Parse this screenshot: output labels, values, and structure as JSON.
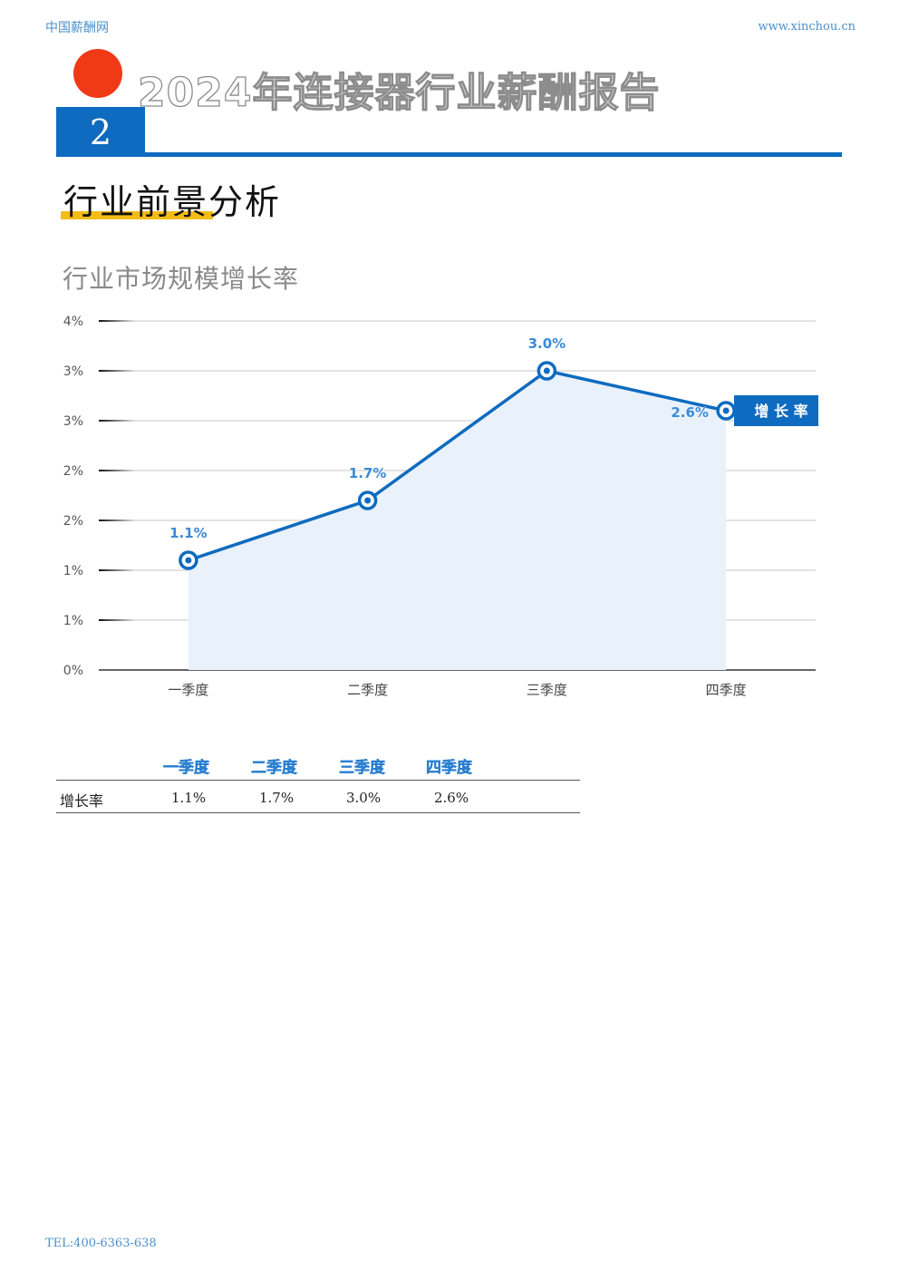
{
  "header": {
    "site_name": "中国薪酬网",
    "site_url": "www.xinchou.cn"
  },
  "report_title": "2024年连接器行业薪酬报告",
  "section_number": "2",
  "section_title": "行业前景分析",
  "chart_title": "行业市场规模增长率",
  "colors": {
    "brand_blue": "#0e6bbf",
    "accent_red": "#f03a17",
    "accent_yellow": "#f4bc18",
    "area_fill": "#e9f1fa"
  },
  "chart_data": {
    "type": "line",
    "title": "行业市场规模增长率",
    "categories": [
      "一季度",
      "二季度",
      "三季度",
      "四季度"
    ],
    "series": [
      {
        "name": "增长率",
        "values": [
          1.1,
          1.7,
          3.0,
          2.6
        ],
        "labels": [
          "1.1%",
          "1.7%",
          "3.0%",
          "2.6%"
        ]
      }
    ],
    "y_ticks": [
      0,
      0.5,
      1.0,
      1.5,
      2.0,
      2.5,
      3.0,
      3.5
    ],
    "y_tick_labels": [
      "0%",
      "1%",
      "1%",
      "2%",
      "2%",
      "3%",
      "3%",
      "4%"
    ],
    "ylim": [
      0,
      3.5
    ],
    "legend_label": "增 长 率",
    "legend_position": "right"
  },
  "table": {
    "headers": [
      "一季度",
      "二季度",
      "三季度",
      "四季度"
    ],
    "row_label": "增长率",
    "values": [
      "1.1%",
      "1.7%",
      "3.0%",
      "2.6%"
    ]
  },
  "footer": {
    "tel": "TEL:400-6363-638"
  }
}
